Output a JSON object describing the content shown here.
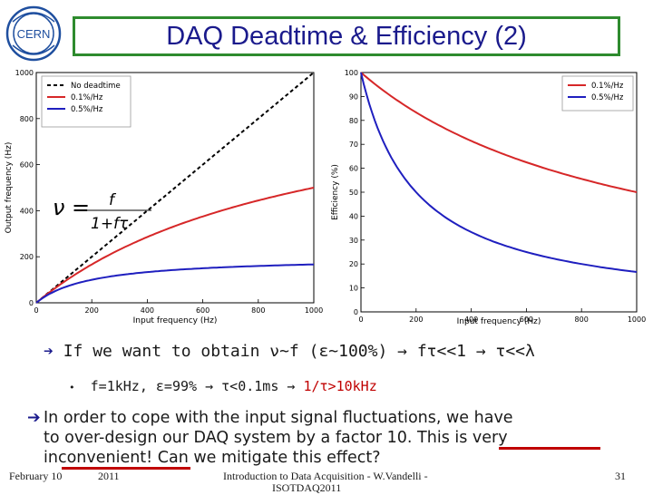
{
  "slide": {
    "title": "DAQ Deadtime & Efficiency (2)",
    "logo_text": "CERN",
    "colors": {
      "title": "#1a1a8c",
      "frame": "#2e8b2e",
      "red": "#d62728",
      "blue": "#1f1fbf"
    }
  },
  "chart_data": [
    {
      "type": "line",
      "xlabel": "Input frequency (Hz)",
      "ylabel": "Output frequency (Hz)",
      "xlim": [
        0,
        1000
      ],
      "ylim": [
        0,
        1000
      ],
      "x_ticks": [
        "0",
        "200",
        "400",
        "600",
        "800",
        "1000"
      ],
      "y_ticks": [
        "0",
        "200",
        "400",
        "600",
        "800",
        "1000"
      ],
      "legend_position": "top-left",
      "formula": {
        "lhs": "ν =",
        "num": "f",
        "den": "1+fτ"
      },
      "series": [
        {
          "name": "No deadtime",
          "style": "dashed",
          "color": "#000000",
          "tau": 0
        },
        {
          "name": "0.1%/Hz",
          "color": "#d62728",
          "tau": 0.001
        },
        {
          "name": "0.5%/Hz",
          "color": "#1f1fbf",
          "tau": 0.005
        }
      ]
    },
    {
      "type": "line",
      "xlabel": "Input frequency (Hz)",
      "ylabel": "Efficiency (%)",
      "xlim": [
        0,
        1000
      ],
      "ylim": [
        0,
        100
      ],
      "x_ticks": [
        "0",
        "200",
        "400",
        "600",
        "800",
        "1000"
      ],
      "y_ticks": [
        "0",
        "10",
        "20",
        "30",
        "40",
        "50",
        "60",
        "70",
        "80",
        "90",
        "100"
      ],
      "legend_position": "top-right",
      "series": [
        {
          "name": "0.1%/Hz",
          "color": "#d62728",
          "tau": 0.001
        },
        {
          "name": "0.5%/Hz",
          "color": "#1f1fbf",
          "tau": 0.005
        }
      ]
    }
  ],
  "text": {
    "bullet_arrow": "➔",
    "bullet_line": "If we want to obtain ν~f (ε~100%) → fτ<<1 → τ<<λ",
    "sub_dot": "•",
    "sub_line_black": "f=1kHz, ε=99% → τ<0.1ms →",
    "sub_line_red": "1/τ>10kHz",
    "para_lines": [
      "In order to cope with the input signal fluctuations, we have",
      "to over-design our DAQ system by a factor 10. This is very",
      "inconvenient! Can we mitigate this effect?"
    ]
  },
  "footer": {
    "date": "February 10",
    "year": "2011",
    "center": "Introduction to Data Acquisition - W.Vandelli -",
    "center2": "ISOTDAQ2011",
    "page": "31"
  }
}
